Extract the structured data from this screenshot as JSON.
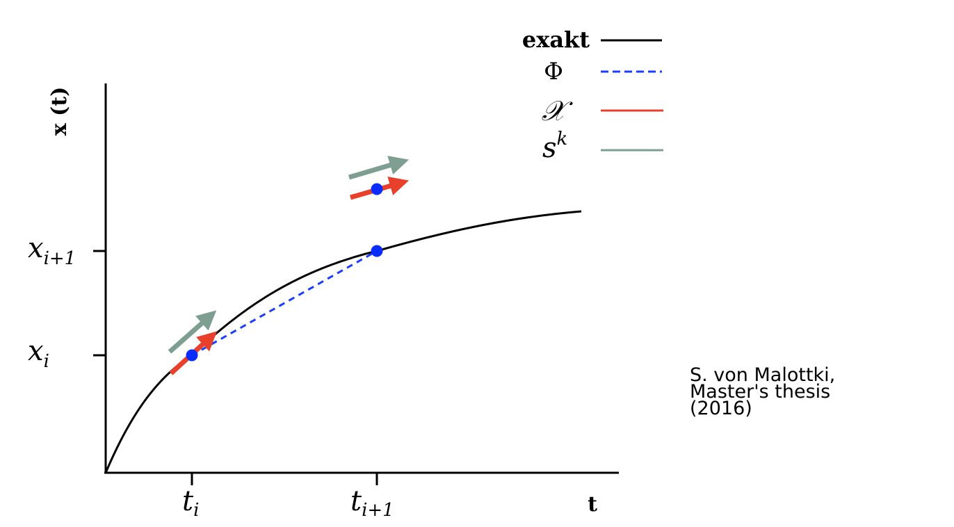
{
  "axes": {
    "y_label": "x (t)",
    "x_label": "t"
  },
  "ticks": {
    "y": [
      {
        "base": "x",
        "sub": "i+1"
      },
      {
        "base": "x",
        "sub": "i"
      }
    ],
    "x": [
      {
        "base": "t",
        "sub": "i"
      },
      {
        "base": "t",
        "sub": "i+1"
      }
    ]
  },
  "legend": {
    "entries": [
      {
        "label": "exakt",
        "color": "#000000",
        "style": "solid"
      },
      {
        "label": "Φ",
        "color": "#1a3cff",
        "style": "dashed"
      },
      {
        "label": "𝒳",
        "color": "#e8402a",
        "style": "solid"
      },
      {
        "label_base": "s",
        "label_sup": "k",
        "color": "#7e9e92",
        "style": "solid"
      }
    ]
  },
  "colors": {
    "exact": "#000000",
    "phi": "#1a3cff",
    "chi": "#e8402a",
    "sk": "#7e9e92",
    "points": "#0a2cff"
  },
  "credit": "S. von Malottki,\nMaster's thesis\n(2016)"
}
